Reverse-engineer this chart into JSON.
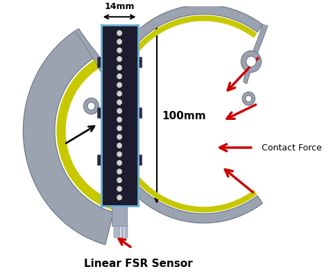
{
  "fig_width": 4.74,
  "fig_height": 4.02,
  "dpi": 100,
  "bg_color": "#ffffff",
  "gray_color": "#9ba3b0",
  "gray_dark": "#6b7380",
  "yellow_color": "#c8c800",
  "sensor_color": "#1c1c2e",
  "sensor_border": "#6ab0d4",
  "dot_color": "#d0d0d0",
  "connector_color": "#8090a8",
  "arrow_black": "#000000",
  "arrow_red": "#cc0000",
  "label_14mm": "14mm",
  "label_100mm": "100mm",
  "label_linear_fsr": "Linear FSR Sensor",
  "label_contact_force": "Contact Force"
}
